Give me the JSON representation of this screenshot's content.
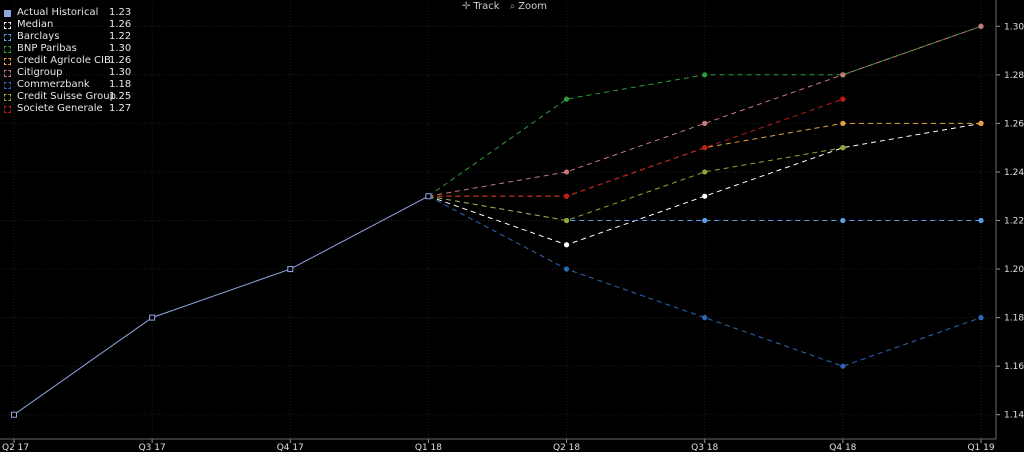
{
  "toolbar": {
    "track_label": "Track",
    "zoom_label": "Zoom",
    "track_icon": "crosshair-icon",
    "zoom_icon": "magnifier-icon"
  },
  "chart_data": {
    "type": "line",
    "title": "",
    "xlabel": "",
    "ylabel": "",
    "categories": [
      "Q2 17",
      "Q3 17",
      "Q4 17",
      "Q1 18",
      "Q2 18",
      "Q3 18",
      "Q4 18",
      "Q1 19"
    ],
    "ylim": [
      1.13,
      1.31
    ],
    "yticks": [
      "1.14",
      "1.16",
      "1.18",
      "1.20",
      "1.22",
      "1.24",
      "1.26",
      "1.28",
      "1.30"
    ],
    "grid": true,
    "legend_position": "top-left",
    "series": [
      {
        "name": "Actual Historical",
        "legend_value": "1.23",
        "color": "#8fa7e0",
        "style": "solid",
        "marker": "square",
        "values": [
          1.14,
          1.18,
          1.2,
          1.23,
          null,
          null,
          null,
          null
        ]
      },
      {
        "name": "Median",
        "legend_value": "1.26",
        "color": "#ffffff",
        "style": "dashed",
        "marker": "dot",
        "values": [
          null,
          null,
          null,
          1.23,
          1.21,
          1.23,
          1.25,
          1.26
        ]
      },
      {
        "name": "Barclays",
        "legend_value": "1.22",
        "color": "#5b9fe6",
        "style": "dashed",
        "marker": "dot",
        "values": [
          null,
          null,
          null,
          1.23,
          1.22,
          1.22,
          1.22,
          1.22
        ]
      },
      {
        "name": "BNP Paribas",
        "legend_value": "1.30",
        "color": "#2e9d3a",
        "style": "dashed",
        "marker": "dot",
        "values": [
          null,
          null,
          null,
          1.23,
          1.27,
          1.28,
          1.28,
          1.3
        ]
      },
      {
        "name": "Credit Agricole CIB",
        "legend_value": "1.26",
        "color": "#e8a13a",
        "style": "dashed",
        "marker": "dot",
        "values": [
          null,
          null,
          null,
          1.23,
          1.23,
          1.25,
          1.26,
          1.26
        ]
      },
      {
        "name": "Citigroup",
        "legend_value": "1.30",
        "color": "#c97a7a",
        "style": "dashed",
        "marker": "dot",
        "values": [
          null,
          null,
          null,
          1.23,
          1.24,
          1.26,
          1.28,
          1.3
        ]
      },
      {
        "name": "Commerzbank",
        "legend_value": "1.18",
        "color": "#2d68b8",
        "style": "dashed",
        "marker": "dot",
        "values": [
          null,
          null,
          null,
          1.23,
          1.2,
          1.18,
          1.16,
          1.18
        ]
      },
      {
        "name": "Credit Suisse Group",
        "legend_value": "1.25",
        "color": "#93a833",
        "style": "dashed",
        "marker": "dot",
        "values": [
          null,
          null,
          null,
          1.23,
          1.22,
          1.24,
          1.25,
          null
        ]
      },
      {
        "name": "Societe Generale",
        "legend_value": "1.27",
        "color": "#c01a1a",
        "style": "dashed",
        "marker": "dot",
        "values": [
          null,
          null,
          null,
          1.23,
          1.23,
          1.25,
          1.27,
          null
        ]
      }
    ]
  }
}
